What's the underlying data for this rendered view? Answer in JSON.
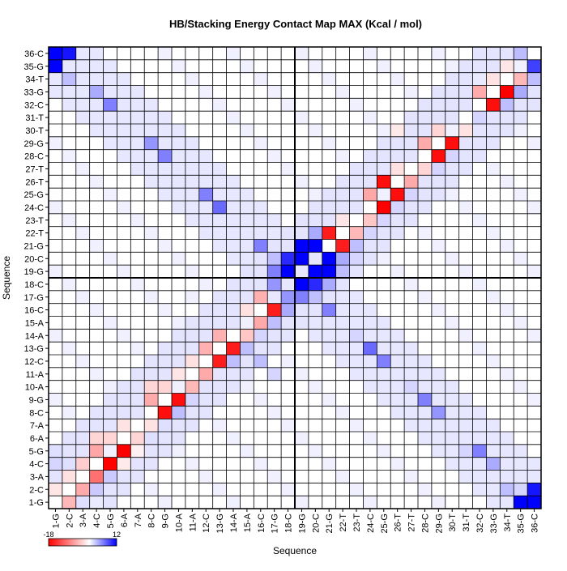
{
  "chart_data": {
    "type": "heatmap",
    "title": "HB/Stacking Energy Contact Map MAX (Kcal / mol)",
    "xlabel": "Sequence",
    "ylabel": "Sequence",
    "labels": [
      "1-G",
      "2-C",
      "3-A",
      "4-C",
      "5-G",
      "6-A",
      "7-A",
      "8-C",
      "9-G",
      "10-A",
      "11-A",
      "12-C",
      "13-G",
      "14-A",
      "15-A",
      "16-C",
      "17-G",
      "18-C",
      "19-G",
      "20-C",
      "21-G",
      "22-T",
      "23-T",
      "24-C",
      "25-G",
      "26-T",
      "27-T",
      "28-C",
      "29-G",
      "30-T",
      "31-T",
      "32-C",
      "33-G",
      "34-T",
      "35-G",
      "36-C"
    ],
    "colorbar": {
      "min": -18,
      "max": 12,
      "min_label": "-18",
      "max_label": "12",
      "colors": [
        "#ff0000",
        "#ffffff",
        "#0000ff"
      ]
    },
    "grid": true,
    "divider_after_index": 18,
    "default_background": 0.7,
    "strong_cells": [
      {
        "i": 1,
        "j": 2,
        "v": -5
      },
      {
        "i": 1,
        "j": 3,
        "v": 1.5
      },
      {
        "i": 1,
        "j": 4,
        "v": 1.0
      },
      {
        "i": 2,
        "j": 3,
        "v": -6
      },
      {
        "i": 2,
        "j": 4,
        "v": 2.5
      },
      {
        "i": 3,
        "j": 4,
        "v": -10
      },
      {
        "i": 3,
        "j": 5,
        "v": 2.5
      },
      {
        "i": 4,
        "j": 5,
        "v": -18
      },
      {
        "i": 4,
        "j": 6,
        "v": -1.5
      },
      {
        "i": 5,
        "j": 6,
        "v": -18
      },
      {
        "i": 5,
        "j": 7,
        "v": -1.0
      },
      {
        "i": 6,
        "j": 7,
        "v": -3
      },
      {
        "i": 6,
        "j": 8,
        "v": 1.5
      },
      {
        "i": 7,
        "j": 8,
        "v": -2
      },
      {
        "i": 7,
        "j": 9,
        "v": 1.5
      },
      {
        "i": 8,
        "j": 9,
        "v": -17
      },
      {
        "i": 8,
        "j": 10,
        "v": 3
      },
      {
        "i": 9,
        "j": 10,
        "v": -17
      },
      {
        "i": 9,
        "j": 11,
        "v": 2
      },
      {
        "i": 10,
        "j": 11,
        "v": -5
      },
      {
        "i": 11,
        "j": 12,
        "v": -6
      },
      {
        "i": 12,
        "j": 13,
        "v": -16
      },
      {
        "i": 12,
        "j": 14,
        "v": 3
      },
      {
        "i": 13,
        "j": 14,
        "v": -16
      },
      {
        "i": 13,
        "j": 15,
        "v": 3
      },
      {
        "i": 14,
        "j": 15,
        "v": -4
      },
      {
        "i": 14,
        "j": 16,
        "v": 2
      },
      {
        "i": 15,
        "j": 16,
        "v": -6
      },
      {
        "i": 15,
        "j": 17,
        "v": 3
      },
      {
        "i": 16,
        "j": 17,
        "v": -16
      },
      {
        "i": 16,
        "j": 18,
        "v": 4
      },
      {
        "i": 17,
        "j": 18,
        "v": 5
      },
      {
        "i": 17,
        "j": 19,
        "v": 6
      },
      {
        "i": 18,
        "j": 19,
        "v": 12
      },
      {
        "i": 18,
        "j": 20,
        "v": 10
      },
      {
        "i": 18,
        "j": 21,
        "v": 4
      },
      {
        "i": 19,
        "j": 20,
        "v": 12
      },
      {
        "i": 19,
        "j": 21,
        "v": 12
      },
      {
        "i": 19,
        "j": 22,
        "v": 3
      },
      {
        "i": 20,
        "j": 21,
        "v": 12
      },
      {
        "i": 20,
        "j": 22,
        "v": 4
      },
      {
        "i": 20,
        "j": 23,
        "v": 2
      },
      {
        "i": 21,
        "j": 22,
        "v": -16
      },
      {
        "i": 21,
        "j": 23,
        "v": 3
      },
      {
        "i": 22,
        "j": 23,
        "v": -5
      },
      {
        "i": 22,
        "j": 24,
        "v": 2
      },
      {
        "i": 23,
        "j": 24,
        "v": -4
      },
      {
        "i": 23,
        "j": 25,
        "v": 2
      },
      {
        "i": 24,
        "j": 25,
        "v": -18
      },
      {
        "i": 24,
        "j": 26,
        "v": 2
      },
      {
        "i": 25,
        "j": 26,
        "v": -17
      },
      {
        "i": 25,
        "j": 27,
        "v": 2
      },
      {
        "i": 26,
        "j": 27,
        "v": -6
      },
      {
        "i": 27,
        "j": 28,
        "v": -3
      },
      {
        "i": 27,
        "j": 29,
        "v": 2
      },
      {
        "i": 28,
        "j": 29,
        "v": -17
      },
      {
        "i": 28,
        "j": 30,
        "v": 2
      },
      {
        "i": 29,
        "j": 30,
        "v": -17
      },
      {
        "i": 30,
        "j": 31,
        "v": -2
      },
      {
        "i": 31,
        "j": 32,
        "v": 2
      },
      {
        "i": 32,
        "j": 33,
        "v": -17
      },
      {
        "i": 32,
        "j": 34,
        "v": 3
      },
      {
        "i": 33,
        "j": 34,
        "v": -18
      },
      {
        "i": 33,
        "j": 35,
        "v": 4
      },
      {
        "i": 34,
        "j": 35,
        "v": -5
      },
      {
        "i": 34,
        "j": 36,
        "v": 3
      },
      {
        "i": 35,
        "j": 36,
        "v": 9
      },
      {
        "i": 1,
        "j": 35,
        "v": 12
      },
      {
        "i": 1,
        "j": 36,
        "v": 12
      },
      {
        "i": 2,
        "j": 36,
        "v": 11
      },
      {
        "i": 2,
        "j": 34,
        "v": 3
      },
      {
        "i": 2,
        "j": 35,
        "v": 2
      },
      {
        "i": 4,
        "j": 33,
        "v": 4
      },
      {
        "i": 5,
        "j": 32,
        "v": 6
      },
      {
        "i": 5,
        "j": 31,
        "v": 2
      },
      {
        "i": 8,
        "j": 29,
        "v": 5
      },
      {
        "i": 9,
        "j": 28,
        "v": 6
      },
      {
        "i": 10,
        "j": 27,
        "v": 2
      },
      {
        "i": 12,
        "j": 25,
        "v": 6
      },
      {
        "i": 13,
        "j": 24,
        "v": 7
      },
      {
        "i": 14,
        "j": 23,
        "v": 2
      },
      {
        "i": 16,
        "j": 21,
        "v": 6
      },
      {
        "i": 17,
        "j": 20,
        "v": 3
      },
      {
        "i": 4,
        "j": 1,
        "v": 2
      },
      {
        "i": 4,
        "j": 2,
        "v": 1.5
      },
      {
        "i": 5,
        "j": 1,
        "v": 1.5
      },
      {
        "i": 6,
        "j": 4,
        "v": -3
      },
      {
        "i": 5,
        "j": 6,
        "v": -18
      },
      {
        "i": 6,
        "j": 5,
        "v": -3
      },
      {
        "i": 7,
        "j": 6,
        "v": -2
      },
      {
        "i": 9,
        "j": 10,
        "v": -17
      },
      {
        "i": 10,
        "j": 9,
        "v": -3
      },
      {
        "i": 10,
        "j": 8,
        "v": -3
      },
      {
        "i": 13,
        "j": 13,
        "v": 0
      },
      {
        "i": 14,
        "j": 13,
        "v": -4
      },
      {
        "i": 13,
        "j": 14,
        "v": -16
      },
      {
        "i": 12,
        "j": 16,
        "v": 3
      },
      {
        "i": 11,
        "j": 17,
        "v": 2
      },
      {
        "i": 30,
        "j": 26,
        "v": -1.5
      },
      {
        "i": 29,
        "j": 30,
        "v": -17
      },
      {
        "i": 30,
        "j": 29,
        "v": -3
      },
      {
        "i": 26,
        "j": 26,
        "v": 0
      },
      {
        "i": 29,
        "j": 8,
        "v": 5
      },
      {
        "i": 28,
        "j": 9,
        "v": 6
      },
      {
        "i": 25,
        "j": 12,
        "v": 6
      },
      {
        "i": 24,
        "j": 13,
        "v": 7
      },
      {
        "i": 21,
        "j": 16,
        "v": 6
      },
      {
        "i": 20,
        "j": 17,
        "v": 3
      },
      {
        "i": 33,
        "j": 4,
        "v": 4
      },
      {
        "i": 32,
        "j": 5,
        "v": 6
      },
      {
        "i": 35,
        "j": 1,
        "v": 12
      },
      {
        "i": 36,
        "j": 1,
        "v": 12
      },
      {
        "i": 36,
        "j": 2,
        "v": 11
      },
      {
        "i": 34,
        "j": 2,
        "v": 3
      },
      {
        "i": 33,
        "j": 34,
        "v": -18
      },
      {
        "i": 34,
        "j": 33,
        "v": -2
      },
      {
        "i": 34,
        "j": 32,
        "v": 1
      },
      {
        "i": 26,
        "j": 25,
        "v": -17
      },
      {
        "i": 26,
        "j": 27,
        "v": -6
      },
      {
        "i": 18,
        "j": 17,
        "v": 5
      },
      {
        "i": 19,
        "j": 18,
        "v": 12
      },
      {
        "i": 20,
        "j": 19,
        "v": 12
      },
      {
        "i": 21,
        "j": 19,
        "v": 12
      },
      {
        "i": 21,
        "j": 20,
        "v": 12
      },
      {
        "i": 19,
        "j": 17,
        "v": 6
      },
      {
        "i": 20,
        "j": 18,
        "v": 10
      },
      {
        "i": 22,
        "j": 21,
        "v": -16
      },
      {
        "i": 22,
        "j": 20,
        "v": 4
      }
    ]
  }
}
